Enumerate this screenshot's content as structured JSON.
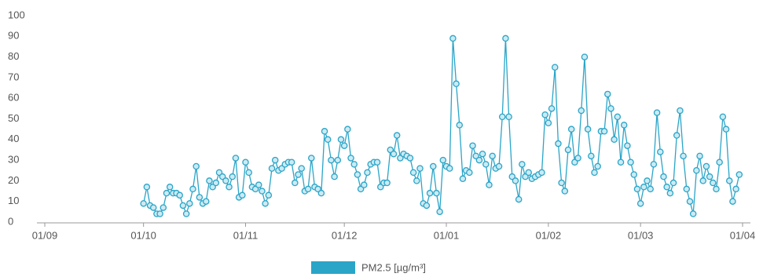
{
  "chart_data": {
    "type": "line",
    "x": [
      30,
      31,
      32,
      33,
      34,
      35,
      36,
      37,
      38,
      39,
      40,
      41,
      42,
      43,
      44,
      45,
      46,
      47,
      48,
      49,
      50,
      51,
      52,
      53,
      54,
      55,
      56,
      57,
      58,
      59,
      60,
      61,
      62,
      63,
      64,
      65,
      66,
      67,
      68,
      69,
      70,
      71,
      72,
      73,
      74,
      75,
      76,
      77,
      78,
      79,
      80,
      81,
      82,
      83,
      84,
      85,
      86,
      87,
      88,
      89,
      90,
      91,
      92,
      93,
      94,
      95,
      96,
      97,
      98,
      99,
      100,
      101,
      102,
      103,
      104,
      105,
      106,
      107,
      108,
      109,
      110,
      111,
      112,
      113,
      114,
      115,
      116,
      117,
      118,
      119,
      120,
      121,
      122,
      123,
      124,
      125,
      126,
      127,
      128,
      129,
      130,
      131,
      132,
      133,
      134,
      135,
      136,
      137,
      138,
      139,
      140,
      141,
      142,
      143,
      144,
      145,
      146,
      147,
      148,
      149,
      150,
      151,
      152,
      153,
      154,
      155,
      156,
      157,
      158,
      159,
      160,
      161,
      162,
      163,
      164,
      165,
      166,
      167,
      168,
      169,
      170,
      171,
      172,
      173,
      174,
      175,
      176,
      177,
      178,
      179,
      180,
      181,
      182,
      183,
      184,
      185,
      186,
      187,
      188,
      189,
      190,
      191,
      192,
      193,
      194,
      195,
      196,
      197,
      198,
      199,
      200,
      201,
      202,
      203,
      204,
      205,
      206,
      207,
      208,
      209,
      210,
      211
    ],
    "series": [
      {
        "name": "PM2.5 [µg/m³]",
        "color": "#2aa5c8",
        "values": [
          9,
          17,
          8,
          7,
          4,
          4,
          7,
          14,
          17,
          14,
          14,
          13,
          8,
          4,
          9,
          16,
          27,
          12,
          9,
          10,
          20,
          17,
          19,
          24,
          22,
          20,
          17,
          22,
          31,
          12,
          13,
          29,
          24,
          17,
          16,
          18,
          15,
          9,
          13,
          26,
          30,
          25,
          26,
          28,
          29,
          29,
          19,
          23,
          26,
          15,
          16,
          31,
          17,
          16,
          14,
          44,
          40,
          30,
          22,
          30,
          40,
          37,
          45,
          31,
          28,
          23,
          16,
          18,
          24,
          28,
          29,
          29,
          17,
          19,
          19,
          35,
          33,
          42,
          31,
          33,
          32,
          31,
          24,
          20,
          26,
          9,
          8,
          14,
          27,
          14,
          5,
          30,
          27,
          26,
          89,
          67,
          47,
          21,
          25,
          24,
          37,
          32,
          30,
          33,
          28,
          18,
          32,
          26,
          27,
          51,
          89,
          51,
          22,
          20,
          11,
          28,
          22,
          24,
          21,
          22,
          23,
          24,
          52,
          48,
          55,
          75,
          38,
          19,
          15,
          35,
          45,
          29,
          31,
          54,
          80,
          45,
          32,
          24,
          27,
          44,
          44,
          62,
          55,
          40,
          51,
          29,
          47,
          37,
          29,
          23,
          16,
          9,
          17,
          20,
          16,
          28,
          53,
          34,
          22,
          17,
          14,
          19,
          42,
          54,
          32,
          16,
          10,
          4,
          25,
          32,
          20,
          27,
          22,
          19,
          16,
          29,
          51,
          45,
          20,
          10,
          16,
          23
        ]
      }
    ],
    "xlim": [
      0,
      212
    ],
    "xticks": [
      {
        "value": 0,
        "label": "01/09"
      },
      {
        "value": 30,
        "label": "01/10"
      },
      {
        "value": 61,
        "label": "01/11"
      },
      {
        "value": 91,
        "label": "01/12"
      },
      {
        "value": 122,
        "label": "01/01"
      },
      {
        "value": 153,
        "label": "01/02"
      },
      {
        "value": 181,
        "label": "01/03"
      },
      {
        "value": 212,
        "label": "01/04"
      }
    ],
    "ylim": [
      0,
      100
    ],
    "yticks": [
      0,
      10,
      20,
      30,
      40,
      50,
      60,
      70,
      80,
      90,
      100
    ],
    "legend": "bottom"
  }
}
